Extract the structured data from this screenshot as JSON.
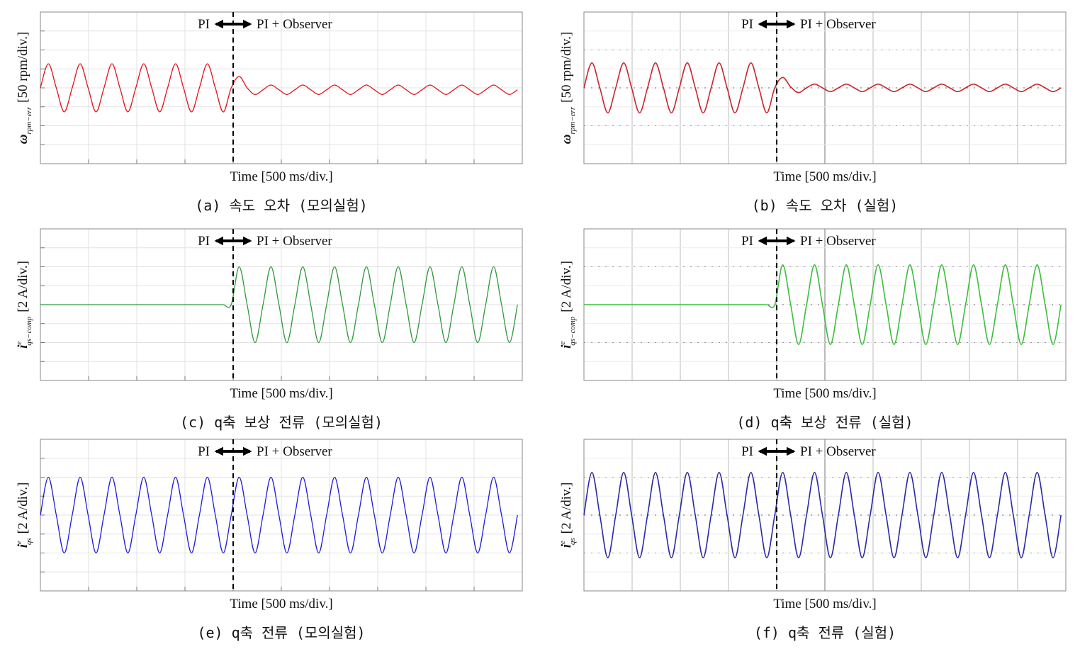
{
  "chart_data": [
    {
      "type": "line",
      "caption": "(a) 속도 오차 (모의실험)",
      "x_label": "Time [500 ms/div.]",
      "y_symbol": "ω",
      "y_subscript": "rpm−err",
      "y_label": "[50 rpm/div.]",
      "annotation_left": "PI",
      "annotation_right": "PI + Observer",
      "x_marker": 4,
      "xlim": [
        0,
        10
      ],
      "ylim": [
        -4,
        4
      ],
      "grid": true,
      "series": [
        {
          "color": "#e3141c",
          "x": [
            0,
            0.165,
            0.33,
            0.495,
            0.66,
            0.825,
            0.99,
            1.155,
            1.32,
            1.485,
            1.65,
            1.815,
            1.98,
            2.145,
            2.31,
            2.475,
            2.64,
            2.805,
            2.97,
            3.135,
            3.3,
            3.465,
            3.63,
            3.795,
            3.96,
            4.125,
            4.29,
            4.455,
            4.62,
            4.785,
            4.95,
            5.115,
            5.28,
            5.445,
            5.61,
            5.775,
            5.94,
            6.105,
            6.27,
            6.435,
            6.6,
            6.765,
            6.93,
            7.095,
            7.26,
            7.425,
            7.59,
            7.755,
            7.92,
            8.085,
            8.25,
            8.415,
            8.58,
            8.745,
            8.91,
            9.075,
            9.24,
            9.405,
            9.57,
            9.735,
            9.9
          ],
          "values": [
            0,
            1.27,
            0,
            -1.27,
            0,
            1.27,
            0,
            -1.27,
            0,
            1.27,
            0,
            -1.27,
            0,
            1.27,
            0,
            -1.27,
            0,
            1.27,
            0,
            -1.27,
            0,
            1.27,
            0,
            -1.27,
            0,
            0.6,
            0,
            -0.35,
            -0.1,
            0.15,
            -0.1,
            -0.35,
            -0.1,
            0.15,
            -0.1,
            -0.35,
            -0.1,
            0.15,
            -0.1,
            -0.35,
            -0.1,
            0.15,
            -0.1,
            -0.35,
            -0.1,
            0.15,
            -0.1,
            -0.35,
            -0.1,
            0.15,
            -0.1,
            -0.35,
            -0.1,
            0.15,
            -0.1,
            -0.35,
            -0.1,
            0.15,
            -0.1,
            -0.35,
            -0.1
          ]
        }
      ]
    },
    {
      "type": "line",
      "caption": "(b) 속도 오차 (실험)",
      "x_label": "Time [500 ms/div.]",
      "y_symbol": "ω",
      "y_subscript": "rpm−err",
      "y_label": "[50 rpm/div.]",
      "annotation_left": "PI",
      "annotation_right": "PI + Observer",
      "x_marker": 4,
      "xlim": [
        0,
        10
      ],
      "ylim": [
        -4,
        4
      ],
      "grid": true,
      "series": [
        {
          "color": "#c8262a",
          "x": [
            0,
            0.165,
            0.33,
            0.495,
            0.66,
            0.825,
            0.99,
            1.155,
            1.32,
            1.485,
            1.65,
            1.815,
            1.98,
            2.145,
            2.31,
            2.475,
            2.64,
            2.805,
            2.97,
            3.135,
            3.3,
            3.465,
            3.63,
            3.795,
            3.96,
            4.125,
            4.29,
            4.455,
            4.62,
            4.785,
            4.95,
            5.115,
            5.28,
            5.445,
            5.61,
            5.775,
            5.94,
            6.105,
            6.27,
            6.435,
            6.6,
            6.765,
            6.93,
            7.095,
            7.26,
            7.425,
            7.59,
            7.755,
            7.92,
            8.085,
            8.25,
            8.415,
            8.58,
            8.745,
            8.91,
            9.075,
            9.24,
            9.405,
            9.57,
            9.735,
            9.9
          ],
          "values": [
            0,
            1.32,
            0,
            -1.32,
            0,
            1.32,
            0,
            -1.32,
            0,
            1.32,
            0,
            -1.32,
            0,
            1.32,
            0,
            -1.32,
            0,
            1.32,
            0,
            -1.32,
            0,
            1.32,
            0,
            -1.32,
            0,
            0.55,
            0.05,
            -0.25,
            0,
            0.2,
            0,
            -0.2,
            0,
            0.2,
            0,
            -0.2,
            0,
            0.2,
            0,
            -0.2,
            0,
            0.2,
            0,
            -0.2,
            0,
            0.2,
            0,
            -0.2,
            0,
            0.2,
            0,
            -0.2,
            0,
            0.2,
            0,
            -0.2,
            0,
            0.2,
            0,
            -0.2,
            0
          ]
        }
      ]
    },
    {
      "type": "line",
      "caption": "(c) q축 보상 전류 (모의실험)",
      "x_label": "Time [500 ms/div.]",
      "y_symbol": "i",
      "y_superscript": "e",
      "y_subscript": "qs−comp",
      "y_label": "[2 A/div.]",
      "annotation_left": "PI",
      "annotation_right": "PI + Observer",
      "x_marker": 4,
      "xlim": [
        0,
        10
      ],
      "ylim": [
        -4,
        4
      ],
      "grid": true,
      "series": [
        {
          "color": "#2e9b3a",
          "x": [
            0,
            0.165,
            0.33,
            0.495,
            0.66,
            0.825,
            0.99,
            1.155,
            1.32,
            1.485,
            1.65,
            1.815,
            1.98,
            2.145,
            2.31,
            2.475,
            2.64,
            2.805,
            2.97,
            3.135,
            3.3,
            3.465,
            3.63,
            3.795,
            3.96,
            4.125,
            4.29,
            4.455,
            4.62,
            4.785,
            4.95,
            5.115,
            5.28,
            5.445,
            5.61,
            5.775,
            5.94,
            6.105,
            6.27,
            6.435,
            6.6,
            6.765,
            6.93,
            7.095,
            7.26,
            7.425,
            7.59,
            7.755,
            7.92,
            8.085,
            8.25,
            8.415,
            8.58,
            8.745,
            8.91,
            9.075,
            9.24,
            9.405,
            9.57,
            9.735,
            9.9
          ],
          "values": [
            0,
            0,
            0,
            0,
            0,
            0,
            0,
            0,
            0,
            0,
            0,
            0,
            0,
            0,
            0,
            0,
            0,
            0,
            0,
            0,
            0,
            0,
            0,
            0,
            0,
            2,
            0,
            -2,
            0,
            2,
            0,
            -2,
            0,
            2,
            0,
            -2,
            0,
            2,
            0,
            -2,
            0,
            2,
            0,
            -2,
            0,
            2,
            0,
            -2,
            0,
            2,
            0,
            -2,
            0,
            2,
            0,
            -2,
            0,
            2,
            0,
            -2,
            0
          ]
        }
      ]
    },
    {
      "type": "line",
      "caption": "(d) q축 보상 전류 (실험)",
      "x_label": "Time [500 ms/div.]",
      "y_symbol": "i",
      "y_superscript": "e",
      "y_subscript": "qs−comp",
      "y_label": "[2 A/div.]",
      "annotation_left": "PI",
      "annotation_right": "PI + Observer",
      "x_marker": 4,
      "xlim": [
        0,
        10
      ],
      "ylim": [
        -4,
        4
      ],
      "grid": true,
      "series": [
        {
          "color": "#3cbf3c",
          "x": [
            0,
            0.165,
            0.33,
            0.495,
            0.66,
            0.825,
            0.99,
            1.155,
            1.32,
            1.485,
            1.65,
            1.815,
            1.98,
            2.145,
            2.31,
            2.475,
            2.64,
            2.805,
            2.97,
            3.135,
            3.3,
            3.465,
            3.63,
            3.795,
            3.96,
            4.125,
            4.29,
            4.455,
            4.62,
            4.785,
            4.95,
            5.115,
            5.28,
            5.445,
            5.61,
            5.775,
            5.94,
            6.105,
            6.27,
            6.435,
            6.6,
            6.765,
            6.93,
            7.095,
            7.26,
            7.425,
            7.59,
            7.755,
            7.92,
            8.085,
            8.25,
            8.415,
            8.58,
            8.745,
            8.91,
            9.075,
            9.24,
            9.405,
            9.57,
            9.735,
            9.9
          ],
          "values": [
            0,
            0,
            0,
            0,
            0,
            0,
            0,
            0,
            0,
            0,
            0,
            0,
            0,
            0,
            0,
            0,
            0,
            0,
            0,
            0,
            0,
            0,
            0,
            0,
            0,
            2.1,
            0,
            -2.1,
            0,
            2.1,
            0,
            -2.1,
            0,
            2.1,
            0,
            -2.1,
            0,
            2.1,
            0,
            -2.1,
            0,
            2.1,
            0,
            -2.1,
            0,
            2.1,
            0,
            -2.1,
            0,
            2.1,
            0,
            -2.1,
            0,
            2.1,
            0,
            -2.1,
            0,
            2.1,
            0,
            -2.1,
            0
          ]
        }
      ]
    },
    {
      "type": "line",
      "caption": "(e) q축 전류 (모의실험)",
      "x_label": "Time [500 ms/div.]",
      "y_symbol": "i",
      "y_superscript": "e",
      "y_subscript": "qs",
      "y_label": "[2 A/div.]",
      "annotation_left": "PI",
      "annotation_right": "PI + Observer",
      "x_marker": 4,
      "xlim": [
        0,
        10
      ],
      "ylim": [
        -4,
        4
      ],
      "grid": true,
      "series": [
        {
          "color": "#1c1cdc",
          "x": [
            0,
            0.165,
            0.33,
            0.495,
            0.66,
            0.825,
            0.99,
            1.155,
            1.32,
            1.485,
            1.65,
            1.815,
            1.98,
            2.145,
            2.31,
            2.475,
            2.64,
            2.805,
            2.97,
            3.135,
            3.3,
            3.465,
            3.63,
            3.795,
            3.96,
            4.125,
            4.29,
            4.455,
            4.62,
            4.785,
            4.95,
            5.115,
            5.28,
            5.445,
            5.61,
            5.775,
            5.94,
            6.105,
            6.27,
            6.435,
            6.6,
            6.765,
            6.93,
            7.095,
            7.26,
            7.425,
            7.59,
            7.755,
            7.92,
            8.085,
            8.25,
            8.415,
            8.58,
            8.745,
            8.91,
            9.075,
            9.24,
            9.405,
            9.57,
            9.735,
            9.9
          ],
          "values": [
            0,
            2,
            0,
            -2,
            0,
            2,
            0,
            -2,
            0,
            2,
            0,
            -2,
            0,
            2,
            0,
            -2,
            0,
            2,
            0,
            -2,
            0,
            2,
            0,
            -2,
            0,
            2,
            0,
            -2,
            0,
            2,
            0,
            -2,
            0,
            2,
            0,
            -2,
            0,
            2,
            0,
            -2,
            0,
            2,
            0,
            -2,
            0,
            2,
            0,
            -2,
            0,
            2,
            0,
            -2,
            0,
            2,
            0,
            -2,
            0,
            2,
            0,
            -2,
            0
          ]
        }
      ]
    },
    {
      "type": "line",
      "caption": "(f) q축 전류 (실험)",
      "x_label": "Time [500 ms/div.]",
      "y_symbol": "i",
      "y_superscript": "e",
      "y_subscript": "qs",
      "y_label": "[2 A/div.]",
      "annotation_left": "PI",
      "annotation_right": "PI + Observer",
      "x_marker": 4,
      "xlim": [
        0,
        10
      ],
      "ylim": [
        -4,
        4
      ],
      "grid": true,
      "series": [
        {
          "color": "#2a2aa6",
          "x": [
            0,
            0.165,
            0.33,
            0.495,
            0.66,
            0.825,
            0.99,
            1.155,
            1.32,
            1.485,
            1.65,
            1.815,
            1.98,
            2.145,
            2.31,
            2.475,
            2.64,
            2.805,
            2.97,
            3.135,
            3.3,
            3.465,
            3.63,
            3.795,
            3.96,
            4.125,
            4.29,
            4.455,
            4.62,
            4.785,
            4.95,
            5.115,
            5.28,
            5.445,
            5.61,
            5.775,
            5.94,
            6.105,
            6.27,
            6.435,
            6.6,
            6.765,
            6.93,
            7.095,
            7.26,
            7.425,
            7.59,
            7.755,
            7.92,
            8.085,
            8.25,
            8.415,
            8.58,
            8.745,
            8.91,
            9.075,
            9.24,
            9.405,
            9.57,
            9.735,
            9.9
          ],
          "values": [
            0,
            2.25,
            0,
            -2.25,
            0,
            2.25,
            0,
            -2.25,
            0,
            2.25,
            0,
            -2.25,
            0,
            2.25,
            0,
            -2.25,
            0,
            2.25,
            0,
            -2.25,
            0,
            2.25,
            0,
            -2.25,
            0,
            2.25,
            0,
            -2.25,
            0,
            2.25,
            0,
            -2.25,
            0,
            2.25,
            0,
            -2.25,
            0,
            2.25,
            0,
            -2.25,
            0,
            2.25,
            0,
            -2.25,
            0,
            2.25,
            0,
            -2.25,
            0,
            2.25,
            0,
            -2.25,
            0,
            2.25,
            0,
            -2.25,
            0,
            2.25,
            0,
            -2.25,
            0
          ]
        }
      ]
    }
  ]
}
